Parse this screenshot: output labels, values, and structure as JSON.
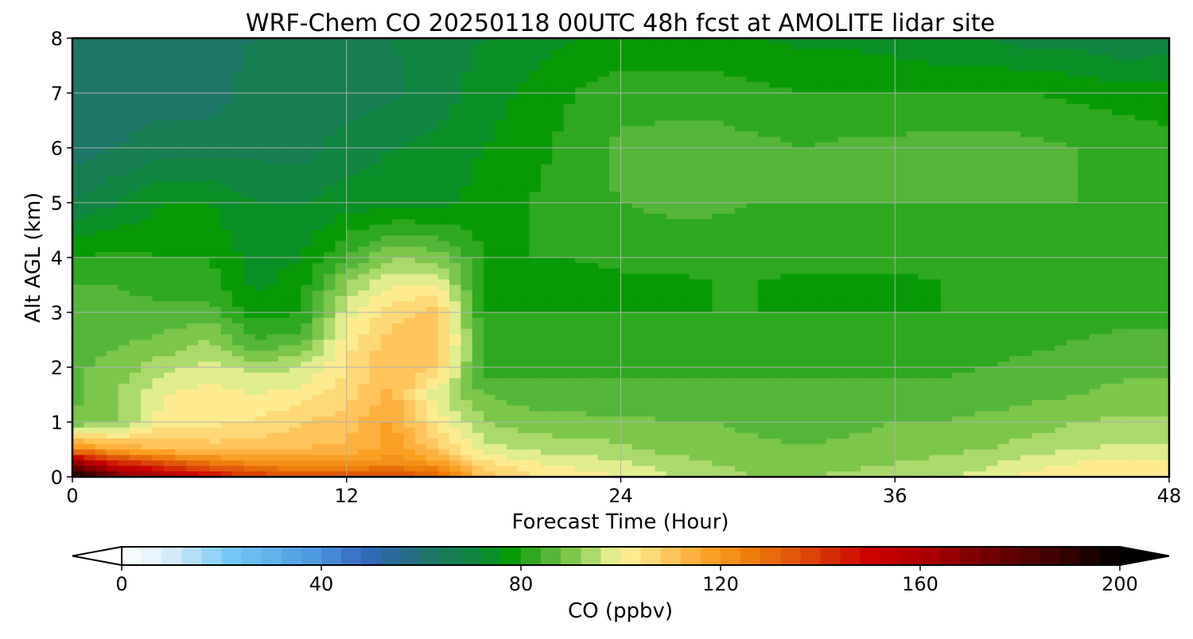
{
  "chart_data": {
    "type": "heatmap",
    "title": "WRF-Chem CO  20250118 00UTC 48h fcst at AMOLITE lidar site",
    "xlabel": "Forecast Time (Hour)",
    "ylabel": "Alt AGL (km)",
    "xlim": [
      0,
      48
    ],
    "ylim": [
      0,
      8
    ],
    "x_ticks": [
      "0",
      "12",
      "24",
      "36",
      "48"
    ],
    "y_ticks": [
      "0",
      "1",
      "2",
      "3",
      "4",
      "5",
      "6",
      "7",
      "8"
    ],
    "grid": true,
    "colorbar": {
      "label": "CO  (ppbv)",
      "range": [
        0,
        200
      ],
      "extend": "both",
      "ticks": [
        "0",
        "40",
        "80",
        "120",
        "160",
        "200"
      ]
    },
    "x": [
      0,
      2,
      4,
      6,
      8,
      10,
      12,
      14,
      16,
      18,
      20,
      22,
      24,
      26,
      28,
      30,
      32,
      34,
      36,
      38,
      40,
      42,
      44,
      46,
      48
    ],
    "y": [
      0,
      0.25,
      0.5,
      1,
      1.5,
      2,
      2.5,
      3,
      3.5,
      4,
      5,
      6,
      7,
      8
    ],
    "z_rows_by_altitude": [
      [
        200,
        175,
        160,
        150,
        140,
        138,
        136,
        138,
        132,
        110,
        105,
        103,
        100,
        96,
        93,
        92,
        92,
        93,
        94,
        95,
        98,
        102,
        103,
        104,
        104
      ],
      [
        168,
        145,
        135,
        128,
        122,
        120,
        120,
        124,
        118,
        105,
        101,
        98,
        97,
        94,
        92,
        91,
        90,
        91,
        92,
        93,
        95,
        98,
        100,
        101,
        101
      ],
      [
        124,
        115,
        112,
        110,
        110,
        112,
        113,
        118,
        110,
        98,
        95,
        94,
        93,
        91,
        90,
        89,
        88,
        89,
        90,
        91,
        92,
        94,
        96,
        97,
        97
      ],
      [
        88,
        92,
        102,
        103,
        104,
        108,
        110,
        117,
        102,
        92,
        90,
        89,
        89,
        88,
        88,
        87,
        87,
        87,
        88,
        88,
        89,
        90,
        92,
        93,
        93
      ],
      [
        87,
        92,
        100,
        102,
        100,
        102,
        106,
        113,
        97,
        88,
        86,
        86,
        85,
        85,
        85,
        85,
        85,
        85,
        85,
        86,
        86,
        87,
        88,
        89,
        89
      ],
      [
        87,
        90,
        94,
        98,
        94,
        96,
        104,
        112,
        108,
        82,
        82,
        82,
        83,
        83,
        83,
        83,
        83,
        83,
        83,
        83,
        84,
        85,
        86,
        87,
        87
      ],
      [
        86,
        87,
        89,
        92,
        84,
        86,
        102,
        110,
        112,
        81,
        81,
        81,
        81,
        81,
        82,
        82,
        82,
        82,
        82,
        82,
        82,
        83,
        84,
        85,
        85
      ],
      [
        86,
        86,
        85,
        86,
        78,
        80,
        98,
        106,
        110,
        80,
        80,
        80,
        80,
        80,
        80,
        80,
        80,
        80,
        80,
        80,
        80,
        81,
        82,
        82,
        82
      ],
      [
        84,
        84,
        82,
        82,
        75,
        78,
        92,
        100,
        100,
        80,
        79,
        79,
        79,
        79,
        80,
        80,
        79,
        79,
        79,
        80,
        80,
        80,
        80,
        80,
        80
      ],
      [
        80,
        81,
        80,
        80,
        74,
        76,
        84,
        92,
        90,
        80,
        80,
        80,
        81,
        81,
        81,
        81,
        81,
        81,
        81,
        81,
        81,
        81,
        81,
        81,
        81
      ],
      [
        68,
        72,
        76,
        76,
        72,
        72,
        74,
        74,
        74,
        78,
        80,
        83,
        84,
        85,
        85,
        84,
        84,
        84,
        84,
        84,
        84,
        84,
        84,
        83,
        83
      ],
      [
        62,
        64,
        66,
        66,
        67,
        66,
        70,
        72,
        73,
        76,
        78,
        82,
        85,
        86,
        86,
        85,
        84,
        85,
        85,
        86,
        86,
        85,
        84,
        83,
        82
      ],
      [
        60,
        62,
        62,
        62,
        66,
        64,
        66,
        67,
        70,
        74,
        77,
        80,
        82,
        82,
        82,
        81,
        80,
        80,
        80,
        80,
        80,
        80,
        79,
        78,
        77
      ],
      [
        62,
        62,
        62,
        62,
        64,
        64,
        66,
        68,
        70,
        72,
        74,
        76,
        77,
        77,
        77,
        76,
        75,
        75,
        74,
        72,
        72,
        70,
        70,
        68,
        70
      ]
    ]
  }
}
